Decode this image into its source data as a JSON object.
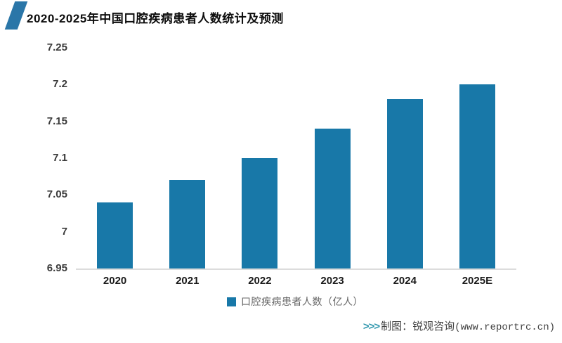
{
  "header": {
    "title": "2020-2025年中国口腔疾病患者人数统计及预测"
  },
  "chart_data": {
    "type": "bar",
    "title": "2020-2025年中国口腔疾病患者人数统计及预测",
    "categories": [
      "2020",
      "2021",
      "2022",
      "2023",
      "2024",
      "2025E"
    ],
    "values": [
      7.04,
      7.07,
      7.1,
      7.14,
      7.18,
      7.2
    ],
    "series_name": "口腔疾病患者人数（亿人）",
    "xlabel": "",
    "ylabel": "",
    "ylim": [
      6.95,
      7.25
    ],
    "yticks": [
      6.95,
      7,
      7.05,
      7.1,
      7.15,
      7.2,
      7.25
    ],
    "ytick_labels": [
      "6.95",
      "7",
      "7.05",
      "7.1",
      "7.15",
      "7.2",
      "7.25"
    ],
    "grid": false,
    "legend_position": "bottom",
    "bar_color": "#1878a8"
  },
  "legend": {
    "label": "口腔疾病患者人数（亿人）"
  },
  "caption": {
    "prefix": ">>>",
    "text": "制图：锐观咨询",
    "url": "(www.reportrc.cn)"
  },
  "colors": {
    "bar": "#1878a8",
    "title_stripe": "#2a76a8",
    "axis_line": "#dcdcdc",
    "caption_accent": "#2e96ad"
  }
}
